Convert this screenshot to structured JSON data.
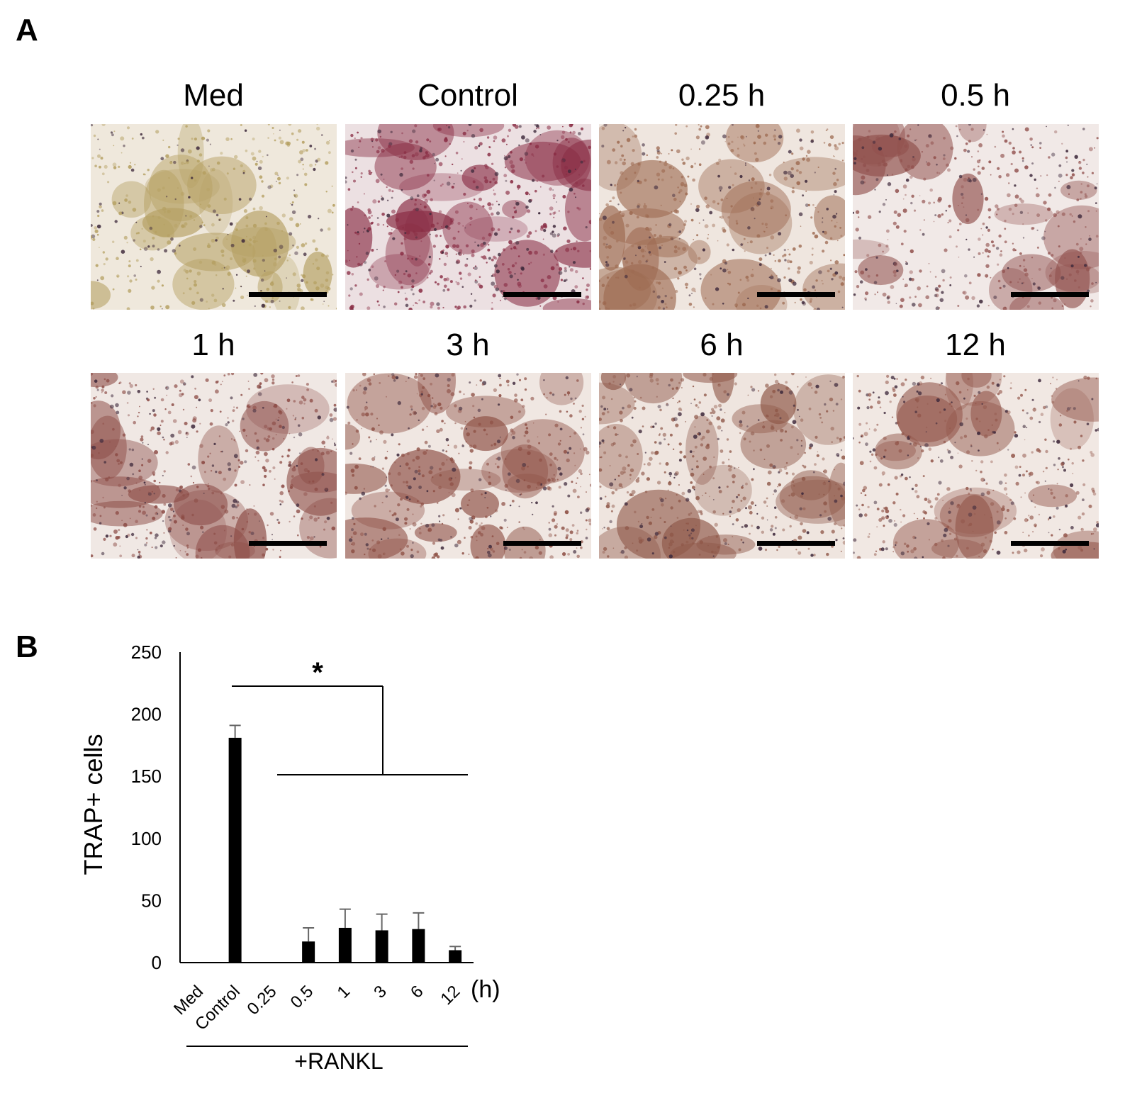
{
  "panel_a": {
    "letter": "A",
    "images": [
      {
        "label": "Med",
        "tint": "#b5a062",
        "bg": "#efe8dc",
        "density": 0.45
      },
      {
        "label": "Control",
        "tint": "#8a2e45",
        "bg": "#ece0e2",
        "density": 0.75
      },
      {
        "label": "0.25 h",
        "tint": "#9e6b52",
        "bg": "#efe6df",
        "density": 0.6
      },
      {
        "label": "0.5 h",
        "tint": "#92524f",
        "bg": "#f1e9e7",
        "density": 0.5
      },
      {
        "label": "1 h",
        "tint": "#8c4b45",
        "bg": "#f0e8e4",
        "density": 0.6
      },
      {
        "label": "3 h",
        "tint": "#8d4f44",
        "bg": "#f0e7e2",
        "density": 0.6
      },
      {
        "label": "6 h",
        "tint": "#8f5849",
        "bg": "#efe5df",
        "density": 0.65
      },
      {
        "label": "12 h",
        "tint": "#94594d",
        "bg": "#f1e8e3",
        "density": 0.5
      }
    ]
  },
  "panel_b": {
    "letter": "B",
    "significance": "*",
    "unit_label": "(h)",
    "group_label": "+RANKL"
  },
  "chart_data": {
    "type": "bar",
    "categories": [
      "Med",
      "Control",
      "0.25",
      "0.5",
      "1",
      "3",
      "6",
      "12"
    ],
    "values": [
      0,
      181,
      0.5,
      17,
      28,
      26,
      27,
      10
    ],
    "errors": [
      0,
      10,
      0,
      11,
      15,
      13,
      13,
      3
    ],
    "ylabel": "TRAP+ cells",
    "yticks": [
      0,
      50,
      100,
      150,
      200,
      250
    ],
    "ylim": [
      0,
      250
    ],
    "bar_color": "#000000",
    "error_color": "#666666"
  }
}
